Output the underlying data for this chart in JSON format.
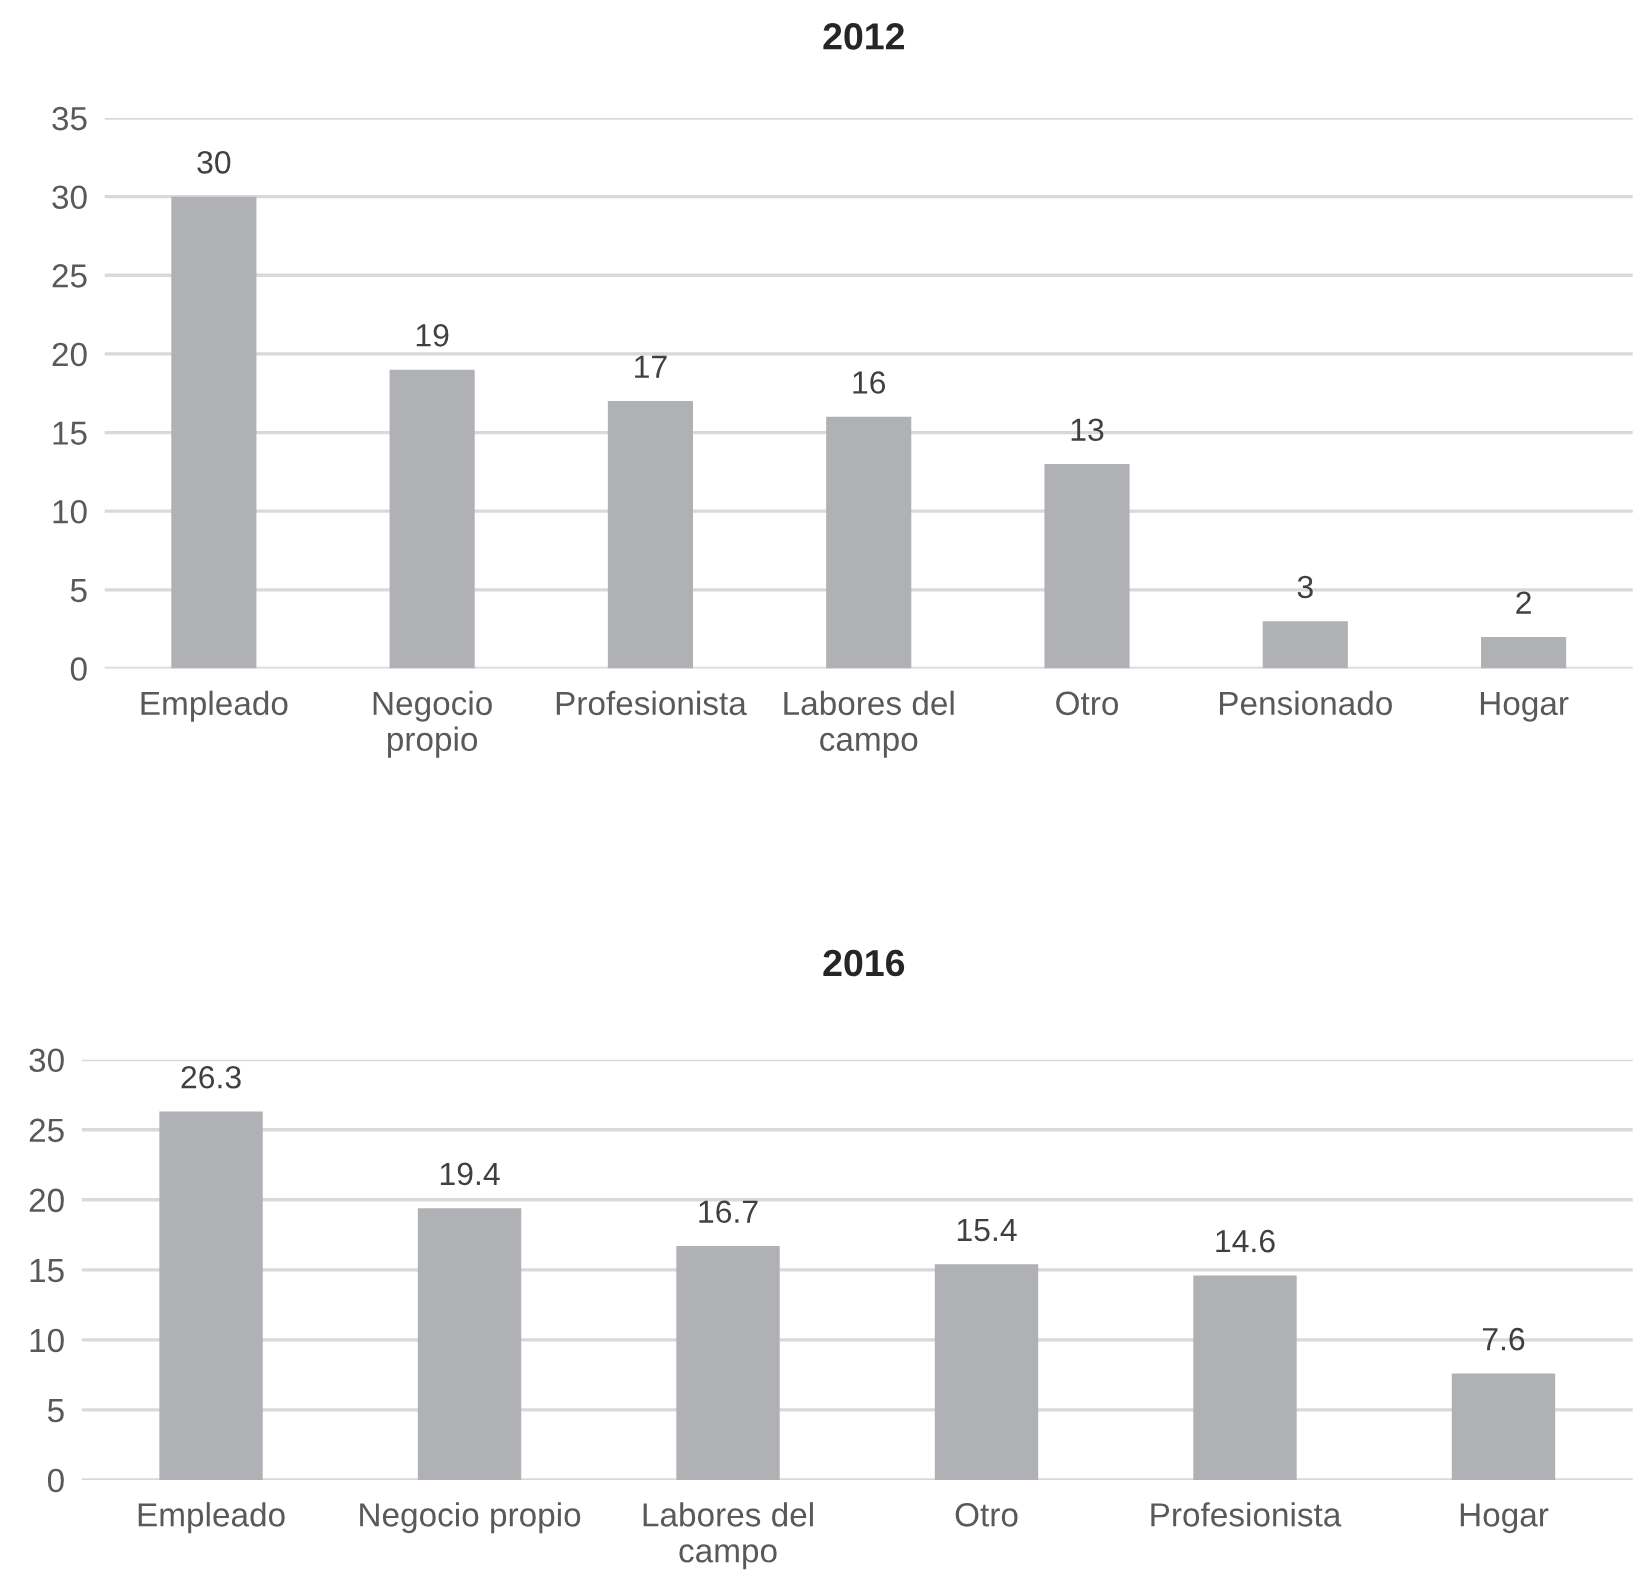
{
  "chart_data": [
    {
      "type": "bar",
      "title": "2012",
      "categories": [
        "Empleado",
        "Negocio\npropio",
        "Profesionista",
        "Labores del\ncampo",
        "Otro",
        "Pensionado",
        "Hogar"
      ],
      "values": [
        30,
        19,
        17,
        16,
        13,
        3,
        2
      ],
      "color": "#b0b1b5",
      "ylim": [
        0,
        35
      ],
      "yticks": [
        0,
        5,
        10,
        15,
        20,
        25,
        30,
        35
      ],
      "grid": "y",
      "data_labels": true
    },
    {
      "type": "bar",
      "title": "2016",
      "categories": [
        "Empleado",
        "Negocio propio",
        "Labores del\ncampo",
        "Otro",
        "Profesionista",
        "Hogar"
      ],
      "values": [
        26.3,
        19.4,
        16.7,
        15.4,
        14.6,
        7.6
      ],
      "color": "#b0b1b5",
      "ylim": [
        0,
        30
      ],
      "yticks": [
        0,
        5,
        10,
        15,
        20,
        25,
        30
      ],
      "grid": "y",
      "data_labels": true
    }
  ]
}
